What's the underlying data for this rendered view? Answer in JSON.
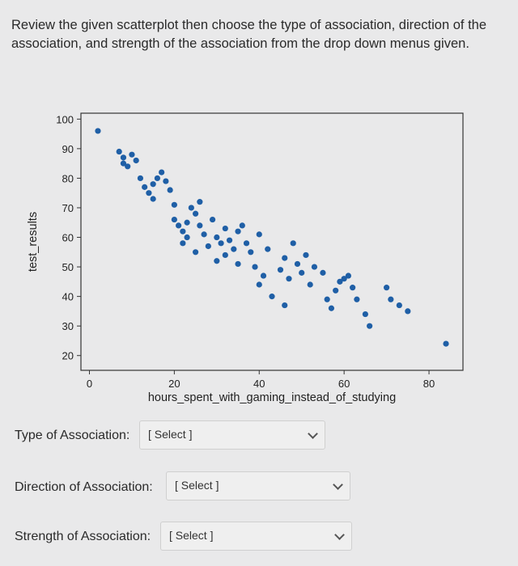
{
  "instructions": "Review the given scatterplot then choose the type of association, direction of the association, and strength of the association from the drop down menus given.",
  "questions": [
    {
      "label": "Type of Association:",
      "selected": "[ Select ]"
    },
    {
      "label": "Direction of Association:",
      "selected": "[ Select ]"
    },
    {
      "label": "Strength of Association:",
      "selected": "[ Select ]"
    }
  ],
  "chart_data": {
    "type": "scatter",
    "xlabel": "hours_spent_with_gaming_instead_of_studying",
    "ylabel": "test_results",
    "xlim": [
      -2,
      88
    ],
    "ylim": [
      15,
      102
    ],
    "xticks": [
      0,
      20,
      40,
      60,
      80
    ],
    "yticks": [
      20,
      30,
      40,
      50,
      60,
      70,
      80,
      90,
      100
    ],
    "grid": false,
    "color": "#1f5fa6",
    "points": [
      [
        2,
        96
      ],
      [
        7,
        89
      ],
      [
        8,
        87
      ],
      [
        8,
        85
      ],
      [
        9,
        84
      ],
      [
        10,
        88
      ],
      [
        11,
        86
      ],
      [
        12,
        80
      ],
      [
        13,
        77
      ],
      [
        14,
        75
      ],
      [
        15,
        78
      ],
      [
        15,
        73
      ],
      [
        16,
        80
      ],
      [
        17,
        82
      ],
      [
        18,
        79
      ],
      [
        19,
        76
      ],
      [
        20,
        71
      ],
      [
        20,
        66
      ],
      [
        21,
        64
      ],
      [
        22,
        62
      ],
      [
        22,
        58
      ],
      [
        23,
        60
      ],
      [
        23,
        65
      ],
      [
        24,
        70
      ],
      [
        25,
        55
      ],
      [
        25,
        68
      ],
      [
        26,
        72
      ],
      [
        26,
        64
      ],
      [
        27,
        61
      ],
      [
        28,
        57
      ],
      [
        29,
        66
      ],
      [
        30,
        60
      ],
      [
        30,
        52
      ],
      [
        31,
        58
      ],
      [
        32,
        54
      ],
      [
        32,
        63
      ],
      [
        33,
        59
      ],
      [
        34,
        56
      ],
      [
        35,
        62
      ],
      [
        35,
        51
      ],
      [
        36,
        64
      ],
      [
        37,
        58
      ],
      [
        38,
        55
      ],
      [
        39,
        50
      ],
      [
        40,
        61
      ],
      [
        40,
        44
      ],
      [
        41,
        47
      ],
      [
        42,
        56
      ],
      [
        43,
        40
      ],
      [
        45,
        49
      ],
      [
        46,
        53
      ],
      [
        46,
        37
      ],
      [
        47,
        46
      ],
      [
        48,
        58
      ],
      [
        49,
        51
      ],
      [
        50,
        48
      ],
      [
        51,
        54
      ],
      [
        52,
        44
      ],
      [
        53,
        50
      ],
      [
        55,
        48
      ],
      [
        56,
        39
      ],
      [
        57,
        36
      ],
      [
        58,
        42
      ],
      [
        59,
        45
      ],
      [
        60,
        46
      ],
      [
        61,
        47
      ],
      [
        62,
        43
      ],
      [
        63,
        39
      ],
      [
        65,
        34
      ],
      [
        66,
        30
      ],
      [
        70,
        43
      ],
      [
        71,
        39
      ],
      [
        73,
        37
      ],
      [
        75,
        35
      ],
      [
        84,
        24
      ]
    ]
  }
}
